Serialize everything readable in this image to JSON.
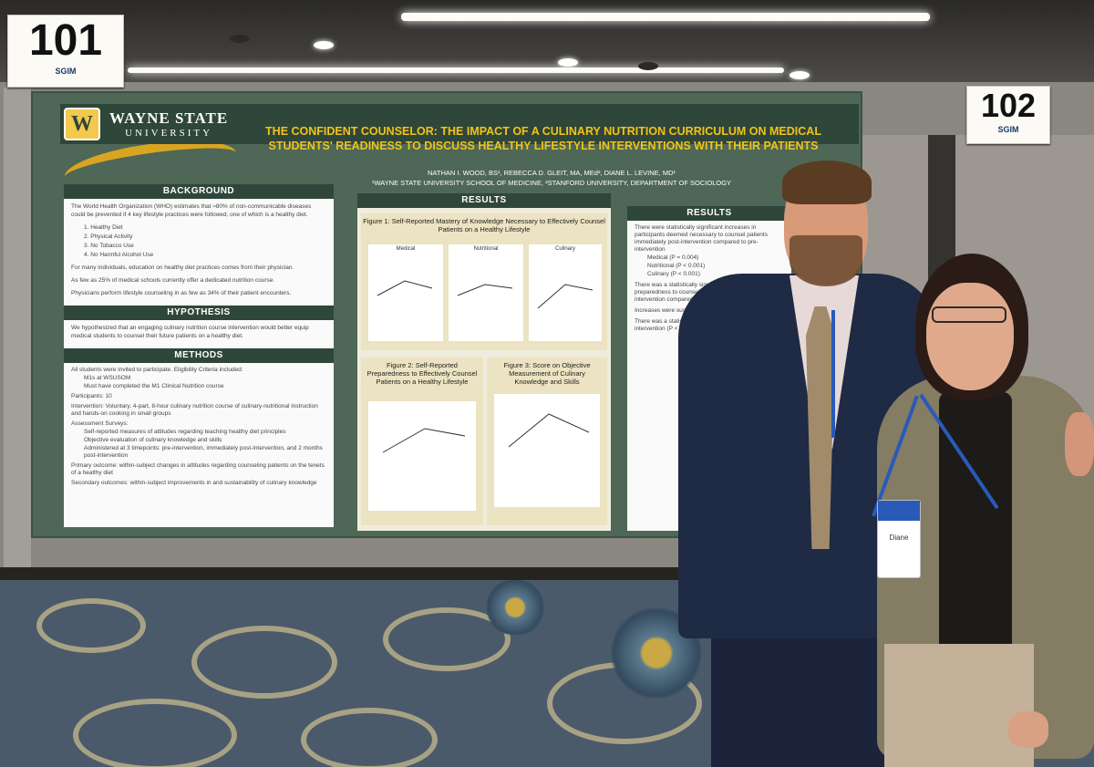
{
  "booth_signs": [
    {
      "number": "101",
      "org": "SGIM"
    },
    {
      "number": "102",
      "org": "SGIM"
    }
  ],
  "poster": {
    "university": {
      "line1": "WAYNE STATE",
      "line2": "UNIVERSITY",
      "logo_letter": "W"
    },
    "title": "THE CONFIDENT COUNSELOR: THE IMPACT OF A CULINARY NUTRITION CURRICULUM ON MEDICAL STUDENTS' READINESS TO DISCUSS HEALTHY LIFESTYLE INTERVENTIONS WITH THEIR PATIENTS",
    "authors": "NATHAN I. WOOD, BS¹, REBECCA D. GLEIT, MA, MEd², DIANE L. LEVINE, MD¹",
    "affiliations": "¹WAYNE STATE UNIVERSITY SCHOOL OF MEDICINE, ²STANFORD UNIVERSITY, DEPARTMENT OF SOCIOLOGY",
    "background": {
      "heading": "BACKGROUND",
      "intro": "The World Health Organization (WHO) estimates that ≈80% of non-communicable diseases could be prevented if 4 key lifestyle practices were followed, one of which is a healthy diet.",
      "list": [
        "1. Healthy Diet",
        "2. Physical Activity",
        "3. No Tobacco Use",
        "4. No Harmful Alcohol Use"
      ],
      "bullets": [
        "For many individuals, education on healthy diet practices comes from their physician.",
        "As few as 25% of medical schools currently offer a dedicated nutrition course.",
        "Physicians perform lifestyle counseling in as few as 34% of their patient encounters."
      ]
    },
    "hypothesis": {
      "heading": "HYPOTHESIS",
      "text": "We hypothesized that an engaging culinary nutrition course intervention would better equip medical students to counsel their future patients on a healthy diet."
    },
    "methods": {
      "heading": "METHODS",
      "bullets": [
        "All students were invited to participate. Eligibility Criteria included:",
        "M1s at WSUSOM",
        "Must have completed the M1 Clinical Nutrition course",
        "Participants: 10",
        "Intervention: Voluntary, 4-part, 8-hour culinary nutrition course of culinary-nutritional instruction and hands-on cooking in small groups",
        "Assessment Surveys:",
        "Self-reported measures of attitudes regarding teaching healthy diet principles",
        "Objective evaluation of culinary knowledge and skills",
        "Administered at 3 timepoints: pre-intervention, immediately post-intervention, and 2 months post-intervention",
        "Primary outcome: within-subject changes in attitudes regarding counseling patients on the tenets of a healthy diet",
        "Secondary outcomes: within-subject improvements in and sustainability of culinary knowledge"
      ]
    },
    "results_mid": {
      "heading": "RESULTS",
      "fig1_title": "Figure 1: Self-Reported Mastery of Knowledge Necessary to Effectively Counsel Patients on a Healthy Lifestyle",
      "fig1_panels": [
        "Medical",
        "Nutritional",
        "Culinary"
      ],
      "fig2_title": "Figure 2: Self-Reported Preparedness to Effectively Counsel Patients on a Healthy Lifestyle",
      "fig3_title": "Figure 3: Score on Objective Measurement of Culinary Knowledge and Skills"
    },
    "results_right": {
      "heading": "RESULTS",
      "bullets": [
        "There were statistically significant increases in participants deemed necessary to counsel patients immediately post-intervention compared to pre-intervention",
        "Medical (P = 0.004)",
        "Nutritional (P < 0.001)",
        "Culinary (P < 0.001)",
        "There was a statistically significant increase in preparedness to counsel patients on a healthy intervention compared to pre-intervention",
        "Increases were sustained and",
        "There was a statistically assessed culinary know intervention (P < 0.001)"
      ]
    }
  },
  "badge": {
    "name": "Diane"
  },
  "colors": {
    "poster_green": "#4e6756",
    "title_gold": "#f0c419",
    "lanyard": "#2a5ab8",
    "jacket": "#1f2a44"
  }
}
